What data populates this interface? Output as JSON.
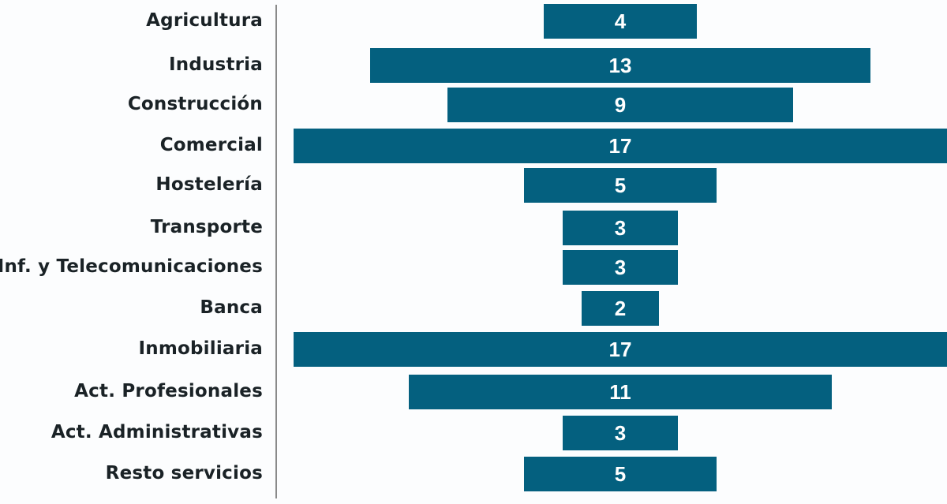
{
  "chart_data": {
    "type": "bar",
    "orientation": "horizontal",
    "style": "centered-funnel",
    "title": "",
    "xlabel": "",
    "ylabel": "",
    "categories": [
      "Agricultura",
      "Industria",
      "Construcción",
      "Comercial",
      "Hostelería",
      "Transporte",
      "Inf. y Telecomunicaciones",
      "Banca",
      "Inmobiliaria",
      "Act. Profesionales",
      "Act. Administrativas",
      "Resto servicios"
    ],
    "values": [
      4,
      13,
      9,
      17,
      5,
      3,
      3,
      2,
      17,
      11,
      3,
      5
    ],
    "bar_color": "#04607f",
    "grid": false,
    "legend": null
  }
}
